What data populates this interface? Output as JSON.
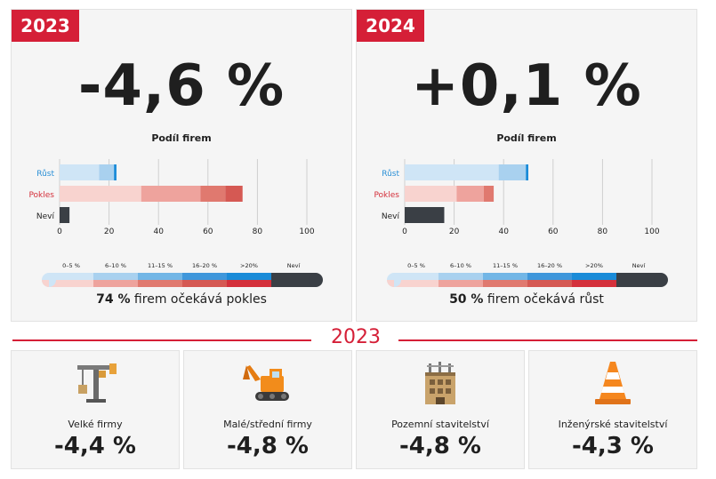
{
  "panels": [
    {
      "year": "2023",
      "headline": "-4,6 %",
      "summary_bold": "74 %",
      "summary_rest": " firem očekává pokles"
    },
    {
      "year": "2024",
      "headline": "+0,1 %",
      "summary_bold": "50 %",
      "summary_rest": " firem očekává růst"
    }
  ],
  "chart_data": [
    {
      "type": "bar",
      "title": "Podíl firem",
      "categories": [
        "Růst",
        "Pokles",
        "Neví"
      ],
      "xlim": [
        0,
        100
      ],
      "x_ticks": [
        0,
        20,
        40,
        60,
        80,
        100
      ],
      "series": [
        {
          "name": "0–5 %",
          "values": [
            16,
            33,
            0
          ]
        },
        {
          "name": "6–10 %",
          "values": [
            6,
            24,
            0
          ]
        },
        {
          "name": "11–15 %",
          "values": [
            0,
            10,
            0
          ]
        },
        {
          "name": "16–20 %",
          "values": [
            0,
            7,
            0
          ]
        },
        {
          "name": ">20%",
          "values": [
            1,
            0,
            0
          ]
        },
        {
          "name": "Neví",
          "values": [
            0,
            0,
            4
          ]
        }
      ],
      "legend": "bottom"
    },
    {
      "type": "bar",
      "title": "Podíl firem",
      "categories": [
        "Růst",
        "Pokles",
        "Neví"
      ],
      "xlim": [
        0,
        100
      ],
      "x_ticks": [
        0,
        20,
        40,
        60,
        80,
        100
      ],
      "series": [
        {
          "name": "0–5 %",
          "values": [
            38,
            21,
            0
          ]
        },
        {
          "name": "6–10 %",
          "values": [
            11,
            11,
            0
          ]
        },
        {
          "name": "11–15 %",
          "values": [
            0,
            4,
            0
          ]
        },
        {
          "name": "16–20 %",
          "values": [
            0,
            0,
            0
          ]
        },
        {
          "name": ">20%",
          "values": [
            1,
            0,
            0
          ]
        },
        {
          "name": "Neví",
          "values": [
            0,
            0,
            16
          ]
        }
      ],
      "legend": "bottom"
    }
  ],
  "colors": {
    "accent": "#d51f37",
    "grow": [
      "#cfe5f6",
      "#a9d1ef",
      "#72b6e6",
      "#3f97db",
      "#1a8bd8"
    ],
    "decline": [
      "#f8d3cf",
      "#eea39d",
      "#e0796f",
      "#d55953",
      "#d4303b"
    ],
    "unknown": "#3a3f45"
  },
  "section_year": "2023",
  "cards": [
    {
      "icon": "tower-crane-icon",
      "label": "Velké firmy",
      "value": "-4,4 %"
    },
    {
      "icon": "excavator-icon",
      "label": "Malé/střední firmy",
      "value": "-4,8 %"
    },
    {
      "icon": "building-construction-icon",
      "label": "Pozemní stavitelství",
      "value": "-4,8 %"
    },
    {
      "icon": "traffic-cone-icon",
      "label": "Inženýrské stavitelství",
      "value": "-4,3 %"
    }
  ]
}
